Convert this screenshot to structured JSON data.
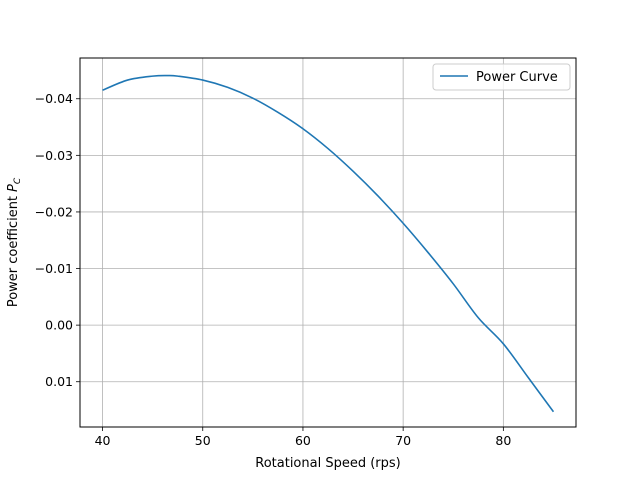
{
  "chart_data": {
    "type": "line",
    "title": "",
    "xlabel": "Rotational Speed (rps)",
    "ylabel": "Power coefficient",
    "ylabel_symbol": "P",
    "ylabel_subscript": "C",
    "xlim": [
      37.75,
      87.25
    ],
    "ylim": [
      -0.0472,
      0.018
    ],
    "y_inverted": true,
    "xticks": [
      40,
      50,
      60,
      70,
      80
    ],
    "xtick_labels": [
      "40",
      "50",
      "60",
      "70",
      "80"
    ],
    "yticks": [
      -0.04,
      -0.03,
      -0.02,
      -0.01,
      0.0,
      0.01
    ],
    "ytick_labels": [
      "−0.04",
      "−0.03",
      "−0.02",
      "−0.01",
      "0.00",
      "0.01"
    ],
    "grid": true,
    "legend_position": "upper right",
    "series": [
      {
        "name": "Power Curve",
        "color": "#1f77b4",
        "x": [
          40,
          42.5,
          45,
          46.5,
          47.5,
          50,
          52.5,
          55,
          57.5,
          60,
          62.5,
          65,
          67.5,
          70,
          72.5,
          75,
          77.5,
          80,
          82.5,
          85
        ],
        "y": [
          -0.0415,
          -0.0433,
          -0.044,
          -0.0441,
          -0.044,
          -0.0433,
          -0.042,
          -0.0401,
          -0.0376,
          -0.0347,
          -0.0312,
          -0.0272,
          -0.0228,
          -0.018,
          -0.0128,
          -0.0073,
          -0.0013,
          0.0033,
          0.0093,
          0.0153
        ]
      }
    ]
  }
}
